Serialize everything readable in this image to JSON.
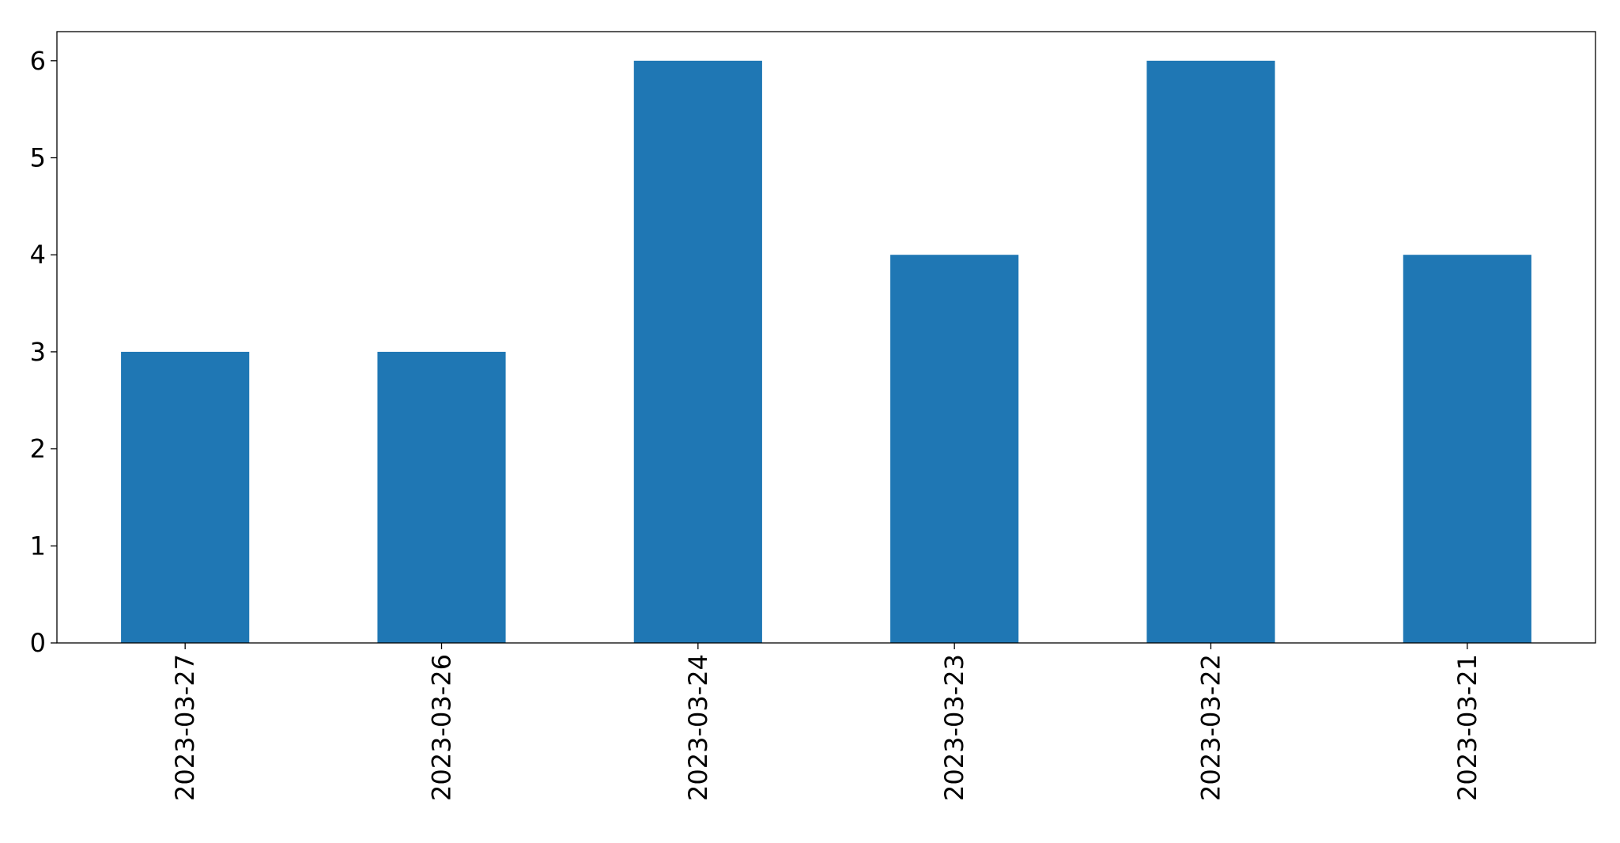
{
  "chart_data": {
    "type": "bar",
    "title": "",
    "xlabel": "",
    "ylabel": "",
    "categories": [
      "2023-03-27",
      "2023-03-26",
      "2023-03-24",
      "2023-03-23",
      "2023-03-22",
      "2023-03-21"
    ],
    "values": [
      3,
      3,
      6,
      4,
      6,
      4
    ],
    "ylim": [
      0,
      6.3
    ],
    "yticks": [
      0,
      1,
      2,
      3,
      4,
      5,
      6
    ],
    "bar_color": "#1f77b4",
    "grid": false,
    "legend": false
  }
}
